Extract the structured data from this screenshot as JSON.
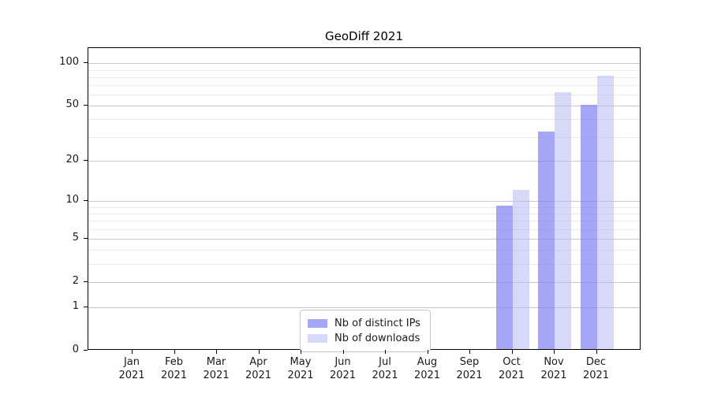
{
  "title": "GeoDiff 2021",
  "colors": {
    "distinct_ips_bar": "rgba(128,128,243,0.70)",
    "downloads_bar": "rgba(184,184,244,0.55)",
    "major_gridline": "#c9c9c9",
    "minor_gridline": "#e9e9e9",
    "axis": "#000000",
    "text": "#1a1a1a"
  },
  "legend": {
    "items": [
      {
        "label": "Nb of distinct IPs"
      },
      {
        "label": "Nb of downloads"
      }
    ]
  },
  "chart_data": {
    "type": "bar",
    "title": "GeoDiff 2021",
    "xlabel": "",
    "ylabel": "",
    "categories": [
      "Jan 2021",
      "Feb 2021",
      "Mar 2021",
      "Apr 2021",
      "May 2021",
      "Jun 2021",
      "Jul 2021",
      "Aug 2021",
      "Sep 2021",
      "Oct 2021",
      "Nov 2021",
      "Dec 2021"
    ],
    "series": [
      {
        "name": "Nb of distinct IPs",
        "color": "rgba(128,128,243,0.70)",
        "values": [
          0,
          0,
          0,
          0,
          0,
          0,
          0,
          0,
          0,
          9,
          32,
          50
        ]
      },
      {
        "name": "Nb of downloads",
        "color": "rgba(184,184,244,0.55)",
        "values": [
          0,
          0,
          0,
          0,
          0,
          0,
          0,
          0,
          0,
          12,
          61,
          80
        ]
      }
    ],
    "y_scale": "symlog",
    "y_ticks": [
      0,
      1,
      2,
      5,
      10,
      20,
      50,
      100
    ],
    "y_minor_ticks": [
      3,
      4,
      6,
      7,
      8,
      9,
      30,
      40,
      60,
      70,
      80,
      90
    ],
    "ylim": [
      0,
      128
    ],
    "grid": true,
    "legend_position": "lower center"
  }
}
